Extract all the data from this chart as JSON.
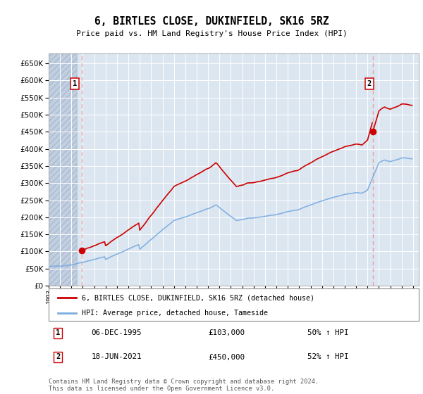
{
  "title": "6, BIRTLES CLOSE, DUKINFIELD, SK16 5RZ",
  "subtitle": "Price paid vs. HM Land Registry's House Price Index (HPI)",
  "hpi_label": "HPI: Average price, detached house, Tameside",
  "property_label": "6, BIRTLES CLOSE, DUKINFIELD, SK16 5RZ (detached house)",
  "transaction1_date": "06-DEC-1995",
  "transaction1_price": 103000,
  "transaction1_pct": "50% ↑ HPI",
  "transaction2_date": "18-JUN-2021",
  "transaction2_price": 450000,
  "transaction2_pct": "52% ↑ HPI",
  "footer": "Contains HM Land Registry data © Crown copyright and database right 2024.\nThis data is licensed under the Open Government Licence v3.0.",
  "ylim": [
    0,
    680000
  ],
  "yticks": [
    0,
    50000,
    100000,
    150000,
    200000,
    250000,
    300000,
    350000,
    400000,
    450000,
    500000,
    550000,
    600000,
    650000
  ],
  "hpi_color": "#7aace0",
  "property_color": "#cc0000",
  "dashed_line_color": "#e8a0a0",
  "background_plot": "#dce6f1",
  "background_hatch": "#c2cfe0",
  "grid_color": "#ffffff",
  "t1_year": 1995.92,
  "t2_year": 2021.46,
  "t1_price": 103000,
  "t2_price": 450000
}
